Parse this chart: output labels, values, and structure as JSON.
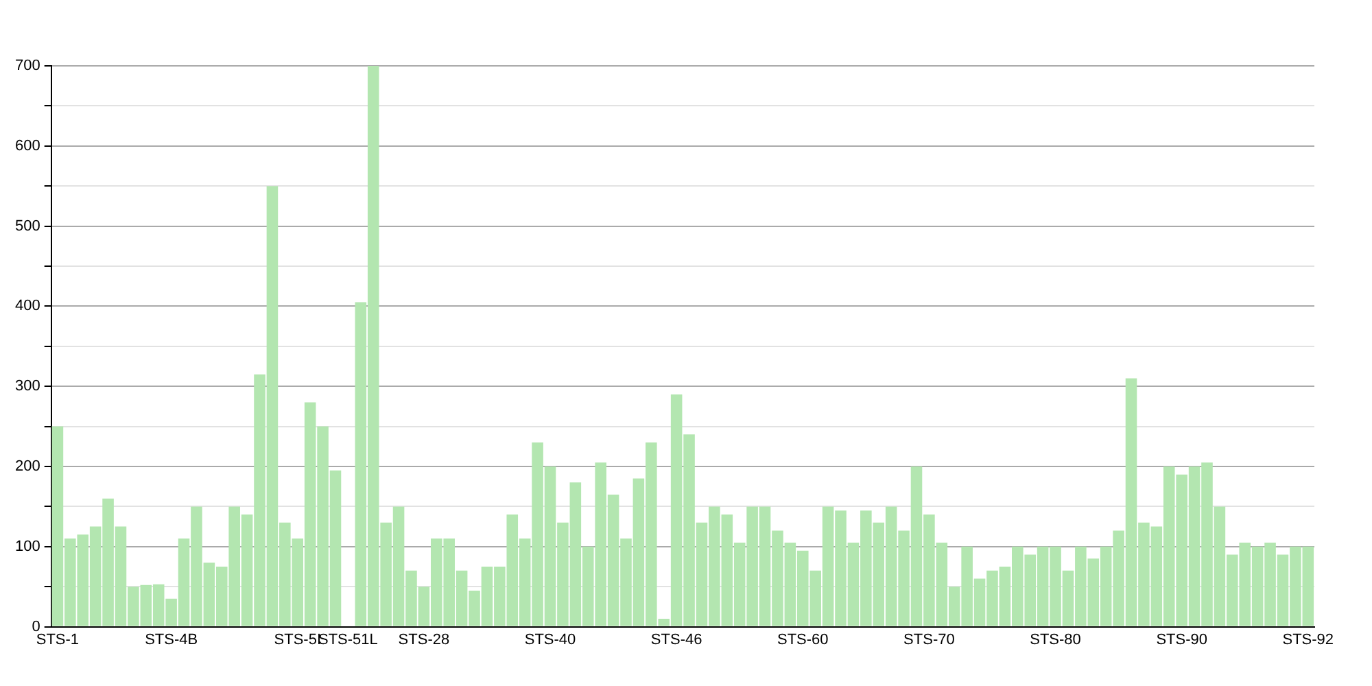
{
  "chart_data": {
    "type": "bar",
    "categories": [
      "STS-1",
      null,
      null,
      null,
      null,
      null,
      null,
      null,
      null,
      "STS-4B",
      null,
      null,
      null,
      null,
      null,
      null,
      null,
      null,
      null,
      "STS-5I",
      null,
      null,
      null,
      "STS-51L",
      null,
      null,
      null,
      null,
      null,
      "STS-28",
      null,
      null,
      null,
      null,
      null,
      null,
      null,
      null,
      null,
      "STS-40",
      null,
      null,
      null,
      null,
      null,
      null,
      null,
      null,
      null,
      "STS-46",
      null,
      null,
      null,
      null,
      null,
      null,
      null,
      null,
      null,
      "STS-60",
      null,
      null,
      null,
      null,
      null,
      null,
      null,
      null,
      null,
      "STS-70",
      null,
      null,
      null,
      null,
      null,
      null,
      null,
      null,
      null,
      "STS-80",
      null,
      null,
      null,
      null,
      null,
      null,
      null,
      null,
      null,
      "STS-90",
      null,
      null,
      null,
      null,
      null,
      null,
      null,
      null,
      null,
      "STS-92"
    ],
    "values": [
      250,
      110,
      115,
      125,
      160,
      125,
      50,
      52,
      53,
      35,
      110,
      150,
      80,
      75,
      150,
      140,
      315,
      550,
      130,
      110,
      280,
      250,
      195,
      0,
      405,
      700,
      130,
      150,
      70,
      50,
      110,
      110,
      70,
      45,
      75,
      75,
      140,
      110,
      230,
      200,
      130,
      180,
      100,
      205,
      165,
      110,
      185,
      230,
      10,
      290,
      240,
      130,
      150,
      140,
      105,
      150,
      150,
      120,
      105,
      95,
      70,
      150,
      145,
      105,
      145,
      130,
      150,
      120,
      200,
      140,
      105,
      50,
      100,
      60,
      70,
      75,
      100,
      90,
      100,
      100,
      70,
      100,
      85,
      100,
      120,
      310,
      130,
      125,
      200,
      190,
      200,
      205,
      150,
      90,
      105,
      100,
      105,
      90,
      100,
      100
    ],
    "color": "#b3e6b0",
    "ylim": [
      0,
      700
    ],
    "yticks": [
      0,
      {
        "value": 50,
        "label": null
      },
      100,
      {
        "value": 150,
        "label": null
      },
      200,
      {
        "value": 250,
        "label": null
      },
      300,
      {
        "value": 350,
        "label": null
      },
      400,
      {
        "value": 450,
        "label": null
      },
      500,
      {
        "value": 550,
        "label": null
      },
      600,
      {
        "value": 650,
        "label": null
      },
      700
    ],
    "grid": "y"
  }
}
